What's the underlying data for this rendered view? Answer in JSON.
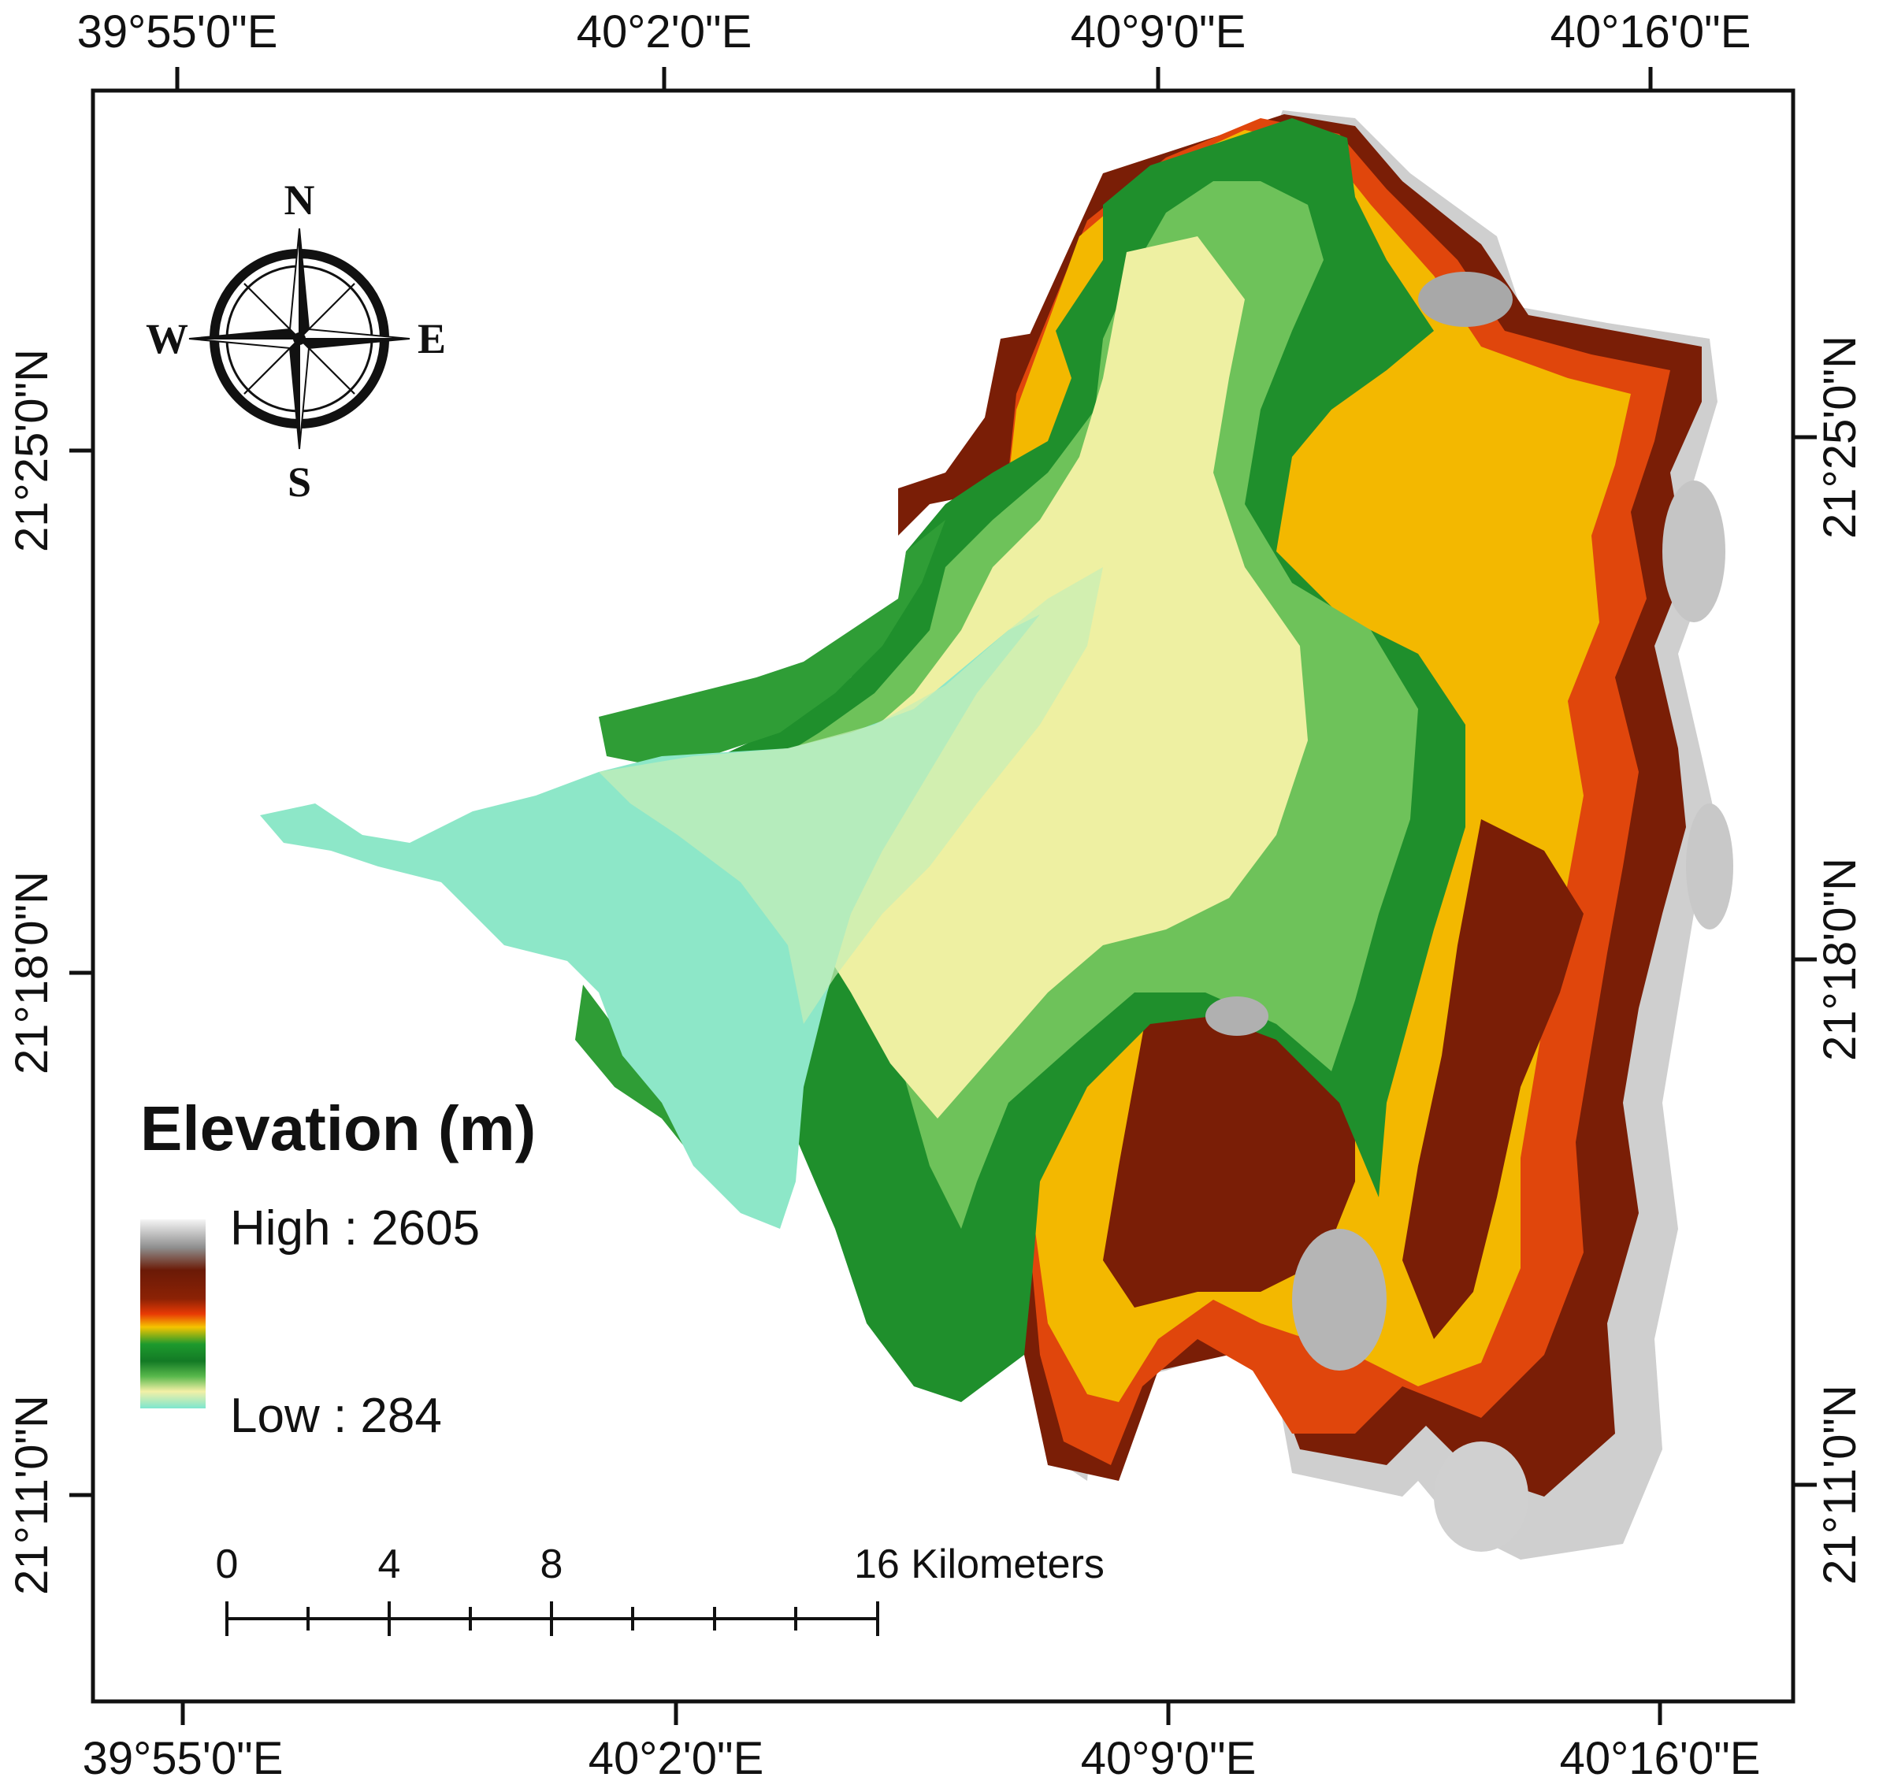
{
  "map": {
    "top_labels": [
      "39°55'0\"E",
      "40°2'0\"E",
      "40°9'0\"E",
      "40°16'0\"E"
    ],
    "bottom_labels": [
      "39°55'0\"E",
      "40°2'0\"E",
      "40°9'0\"E",
      "40°16'0\"E"
    ],
    "left_labels": [
      "21°25'0\"N",
      "21°18'0\"N",
      "21°11'0\"N"
    ],
    "right_labels": [
      "21°25'0\"N",
      "21°18'0\"N",
      "21°11'0\"N"
    ]
  },
  "compass": {
    "n": "N",
    "s": "S",
    "e": "E",
    "w": "W",
    "icon": "compass-rose-icon"
  },
  "legend": {
    "title": "Elevation (m)",
    "high_label": "High : 2605",
    "low_label": "Low : 284",
    "colors": [
      "#f2f2f2",
      "#8b8b8b",
      "#6b1a06",
      "#9a2a05",
      "#e83a05",
      "#f5c400",
      "#1a8f2a",
      "#47b04a",
      "#f2f0a8",
      "#7de6cf"
    ]
  },
  "scale_bar": {
    "labels": [
      "0",
      "4",
      "8",
      "16 Kilometers"
    ]
  }
}
